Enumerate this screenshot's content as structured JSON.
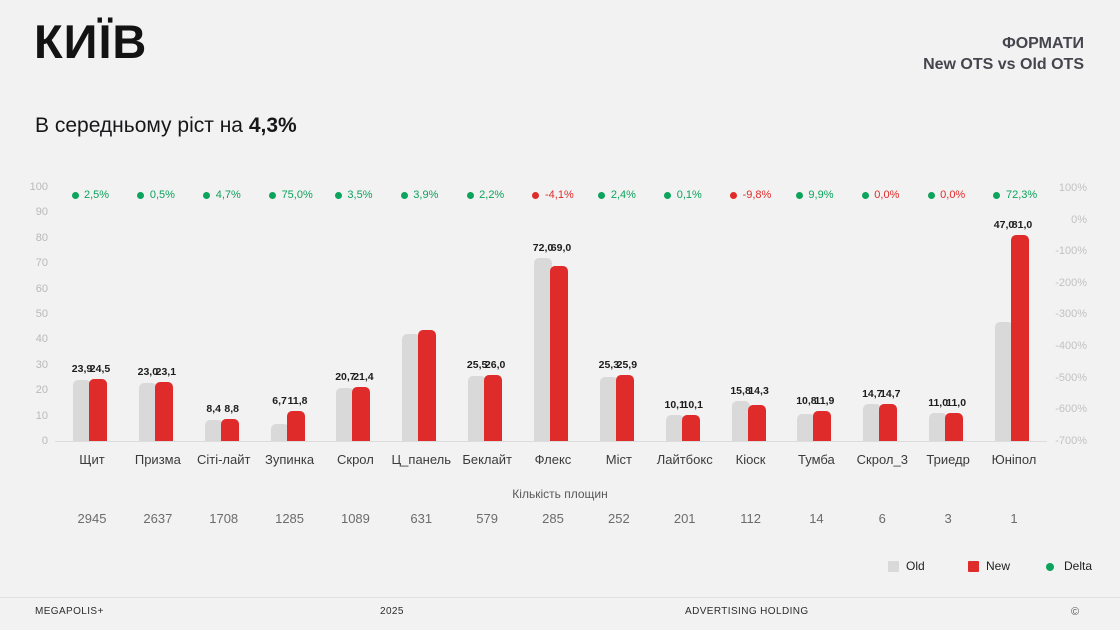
{
  "colors": {
    "background": "#f2f2f2",
    "old_bar": "#d9d9d9",
    "new_bar": "#e02b2b",
    "green": "#0ca35c",
    "red_text": "#e02b2b",
    "green_text": "#0ca35c"
  },
  "header": {
    "title": "КИЇВ",
    "kicker": "ФОРМАТИ",
    "subkicker": "New OTS vs Old OTS"
  },
  "subtitle": {
    "prefix": "В середньому ріст на ",
    "bold": "4,3%"
  },
  "chart_data": {
    "type": "bar",
    "title": "New OTS vs Old OTS — КИЇВ",
    "categories": [
      "Щит",
      "Призма",
      "Сіті-лайт",
      "Зупинка",
      "Скрол",
      "Ц_панель",
      "Беклайт",
      "Флекс",
      "Міст",
      "Лайтбокс",
      "Кіоск",
      "Тумба",
      "Скрол_3",
      "Триедр",
      "Юніпол"
    ],
    "series": [
      {
        "name": "Old",
        "values": [
          23.9,
          23.0,
          8.4,
          6.7,
          20.7,
          42.0,
          25.5,
          72.0,
          25.3,
          10.1,
          15.8,
          10.8,
          14.7,
          11.0,
          47.0
        ]
      },
      {
        "name": "New",
        "values": [
          24.5,
          23.1,
          8.8,
          11.8,
          21.4,
          43.6,
          26.0,
          69.0,
          25.9,
          10.1,
          14.3,
          11.9,
          14.7,
          11.0,
          81.0
        ]
      }
    ],
    "old_labels": [
      "23,9",
      "23,0",
      "8,4",
      "6,7",
      "20,7",
      "",
      "25,5",
      "72,0",
      "25,3",
      "10,1",
      "15,8",
      "10,8",
      "14,7",
      "11,0",
      "47,0"
    ],
    "new_labels": [
      "24,5",
      "23,1",
      "8,8",
      "11,8",
      "21,4",
      "",
      "26,0",
      "69,0",
      "25,9",
      "10,1",
      "14,3",
      "11,9",
      "14,7",
      "11,0",
      "81,0"
    ],
    "deltas": [
      {
        "text": "2,5%",
        "dot": "green",
        "color": "green"
      },
      {
        "text": "0,5%",
        "dot": "green",
        "color": "green"
      },
      {
        "text": "4,7%",
        "dot": "green",
        "color": "green"
      },
      {
        "text": "75,0%",
        "dot": "green",
        "color": "green"
      },
      {
        "text": "3,5%",
        "dot": "green",
        "color": "green"
      },
      {
        "text": "3,9%",
        "dot": "green",
        "color": "green"
      },
      {
        "text": "2,2%",
        "dot": "green",
        "color": "green"
      },
      {
        "text": "-4,1%",
        "dot": "red",
        "color": "red"
      },
      {
        "text": "2,4%",
        "dot": "green",
        "color": "green"
      },
      {
        "text": "0,1%",
        "dot": "green",
        "color": "green"
      },
      {
        "text": "-9,8%",
        "dot": "red",
        "color": "red"
      },
      {
        "text": "9,9%",
        "dot": "green",
        "color": "green"
      },
      {
        "text": "0,0%",
        "dot": "green",
        "color": "red"
      },
      {
        "text": "0,0%",
        "dot": "green",
        "color": "red"
      },
      {
        "text": "72,3%",
        "dot": "green",
        "color": "green"
      }
    ],
    "counts": [
      "2945",
      "2637",
      "1708",
      "1285",
      "1089",
      "631",
      "579",
      "285",
      "252",
      "201",
      "112",
      "14",
      "6",
      "3",
      "1"
    ],
    "counts_label": "Кількість площин",
    "y_axis_left": {
      "ticks": [
        100,
        90,
        80,
        70,
        60,
        50,
        40,
        30,
        20,
        10,
        0
      ],
      "ylim": [
        0,
        100
      ]
    },
    "y_axis_right": {
      "ticks": [
        "100%",
        "0%",
        "-100%",
        "-200%",
        "-300%",
        "-400%",
        "-500%",
        "-600%",
        "-700%"
      ]
    },
    "grid": false,
    "legend_position": "bottom-right",
    "legend": [
      {
        "label": "Old",
        "marker": "square",
        "color_key": "old_bar"
      },
      {
        "label": "New",
        "marker": "square",
        "color_key": "new_bar"
      },
      {
        "label": "Delta",
        "marker": "dot",
        "color_key": "green"
      }
    ]
  },
  "footer": {
    "brand": "MEGAPOLIS+",
    "year": "2025",
    "company": "ADVERTISING HOLDING",
    "mark": "©"
  }
}
